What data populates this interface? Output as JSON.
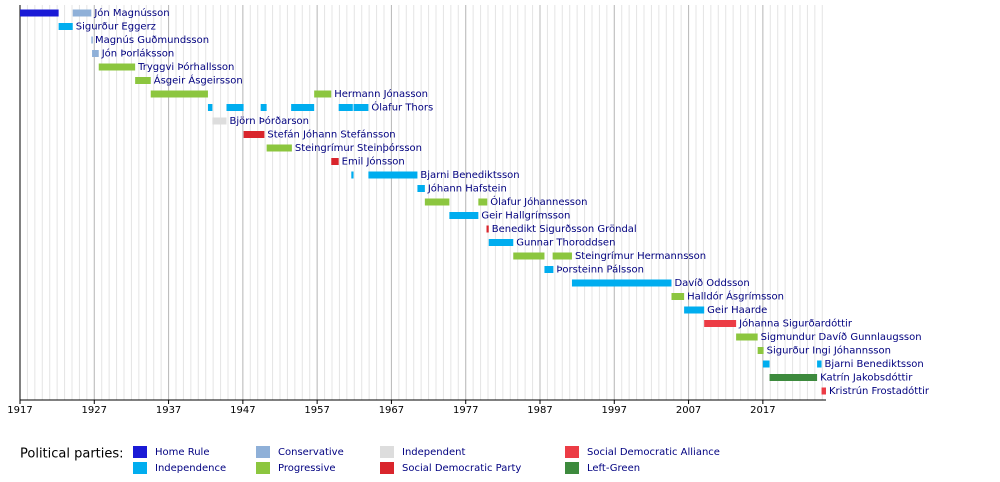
{
  "chart_data": {
    "type": "timeline",
    "xlim": [
      1917,
      2025.5
    ],
    "xticks": [
      1917,
      1927,
      1937,
      1947,
      1957,
      1967,
      1977,
      1987,
      1997,
      2007,
      2017
    ],
    "grid": true,
    "legend_title": "Political parties:",
    "parties": [
      {
        "name": "Home Rule",
        "color": "#1a1ad6"
      },
      {
        "name": "Independence",
        "color": "#00adef"
      },
      {
        "name": "Conservative",
        "color": "#8fb0d8"
      },
      {
        "name": "Progressive",
        "color": "#8cc63f"
      },
      {
        "name": "Independent",
        "color": "#dddddd"
      },
      {
        "name": "Social Democratic Party",
        "color": "#d9252c"
      },
      {
        "name": "Social Democratic Alliance",
        "color": "#ec3c45"
      },
      {
        "name": "Left-Green",
        "color": "#3d8a3d"
      }
    ],
    "rows": [
      {
        "name": "Jón Magnússon",
        "periods": [
          {
            "start": 1917.0,
            "end": 1922.2,
            "party": 0
          },
          {
            "start": 1924.1,
            "end": 1926.6,
            "party": 2
          }
        ]
      },
      {
        "name": "Sigurður Eggerz",
        "periods": [
          {
            "start": 1922.2,
            "end": 1924.1,
            "party": 1
          }
        ]
      },
      {
        "name": "Magnús Guðmundsson",
        "periods": [
          {
            "start": 1926.6,
            "end": 1926.7,
            "party": 2
          }
        ]
      },
      {
        "name": "Jón Þorláksson",
        "periods": [
          {
            "start": 1926.7,
            "end": 1927.6,
            "party": 2
          }
        ]
      },
      {
        "name": "Tryggvi Þórhallsson",
        "periods": [
          {
            "start": 1927.6,
            "end": 1932.5,
            "party": 3
          }
        ]
      },
      {
        "name": "Ásgeir Ásgeirsson",
        "periods": [
          {
            "start": 1932.5,
            "end": 1934.6,
            "party": 3
          }
        ]
      },
      {
        "name": "Hermann Jónasson",
        "periods": [
          {
            "start": 1934.6,
            "end": 1942.3,
            "party": 3
          },
          {
            "start": 1956.6,
            "end": 1958.9,
            "party": 3
          }
        ]
      },
      {
        "name": "Ólafur Thors",
        "periods": [
          {
            "start": 1942.3,
            "end": 1942.9,
            "party": 1
          },
          {
            "start": 1944.8,
            "end": 1947.1,
            "party": 1
          },
          {
            "start": 1949.4,
            "end": 1950.2,
            "party": 1
          },
          {
            "start": 1953.5,
            "end": 1956.6,
            "party": 1
          },
          {
            "start": 1959.9,
            "end": 1961.8,
            "party": 1
          },
          {
            "start": 1961.9,
            "end": 1963.9,
            "party": 1
          }
        ]
      },
      {
        "name": "Björn Þórðarson",
        "periods": [
          {
            "start": 1942.9,
            "end": 1944.8,
            "party": 4
          }
        ]
      },
      {
        "name": "Stefán Jóhann Stefánsson",
        "periods": [
          {
            "start": 1947.1,
            "end": 1949.9,
            "party": 5
          }
        ]
      },
      {
        "name": "Steingrímur Steinþórsson",
        "periods": [
          {
            "start": 1950.2,
            "end": 1953.6,
            "party": 3
          }
        ]
      },
      {
        "name": "Emil Jónsson",
        "periods": [
          {
            "start": 1958.9,
            "end": 1959.9,
            "party": 5
          }
        ]
      },
      {
        "name": "Bjarni Benediktsson",
        "periods": [
          {
            "start": 1961.6,
            "end": 1961.9,
            "party": 1
          },
          {
            "start": 1963.9,
            "end": 1970.5,
            "party": 1
          }
        ]
      },
      {
        "name": "Jóhann Hafstein",
        "periods": [
          {
            "start": 1970.5,
            "end": 1971.5,
            "party": 1
          }
        ]
      },
      {
        "name": "Ólafur Jóhannesson",
        "periods": [
          {
            "start": 1971.5,
            "end": 1974.8,
            "party": 3
          },
          {
            "start": 1978.7,
            "end": 1979.9,
            "party": 3
          }
        ]
      },
      {
        "name": "Geir Hallgrímsson",
        "periods": [
          {
            "start": 1974.8,
            "end": 1978.7,
            "party": 1
          }
        ]
      },
      {
        "name": "Benedikt Sigurðsson Gröndal",
        "periods": [
          {
            "start": 1979.8,
            "end": 1980.1,
            "party": 5
          }
        ]
      },
      {
        "name": "Gunnar Thoroddsen",
        "periods": [
          {
            "start": 1980.1,
            "end": 1983.4,
            "party": 1
          }
        ]
      },
      {
        "name": "Steingrímur Hermannsson",
        "periods": [
          {
            "start": 1983.4,
            "end": 1987.6,
            "party": 3
          },
          {
            "start": 1988.7,
            "end": 1991.3,
            "party": 3
          }
        ]
      },
      {
        "name": "Þorsteinn Pálsson",
        "periods": [
          {
            "start": 1987.6,
            "end": 1988.8,
            "party": 1
          }
        ]
      },
      {
        "name": "Davíð Oddsson",
        "periods": [
          {
            "start": 1991.3,
            "end": 2004.7,
            "party": 1
          }
        ]
      },
      {
        "name": "Halldór Ásgrímsson",
        "periods": [
          {
            "start": 2004.7,
            "end": 2006.4,
            "party": 3
          }
        ]
      },
      {
        "name": "Geir Haarde",
        "periods": [
          {
            "start": 2006.4,
            "end": 2009.1,
            "party": 1
          }
        ]
      },
      {
        "name": "Jóhanna Sigurðardóttir",
        "periods": [
          {
            "start": 2009.1,
            "end": 2013.4,
            "party": 6
          }
        ]
      },
      {
        "name": "Sigmundur Davíð Gunnlaugsson",
        "periods": [
          {
            "start": 2013.4,
            "end": 2016.3,
            "party": 3
          }
        ]
      },
      {
        "name": "Sigurður Ingi Jóhannsson",
        "periods": [
          {
            "start": 2016.3,
            "end": 2017.1,
            "party": 3
          }
        ]
      },
      {
        "name": "Bjarni Benediktsson",
        "periods": [
          {
            "start": 2017.0,
            "end": 2017.9,
            "party": 1
          },
          {
            "start": 2024.3,
            "end": 2024.9,
            "party": 1
          }
        ]
      },
      {
        "name": "Katrín Jakobsdóttir",
        "periods": [
          {
            "start": 2017.9,
            "end": 2024.3,
            "party": 7
          }
        ]
      },
      {
        "name": "Kristrún Frostadóttir",
        "periods": [
          {
            "start": 2024.9,
            "end": 2025.5,
            "party": 6
          }
        ]
      }
    ]
  }
}
